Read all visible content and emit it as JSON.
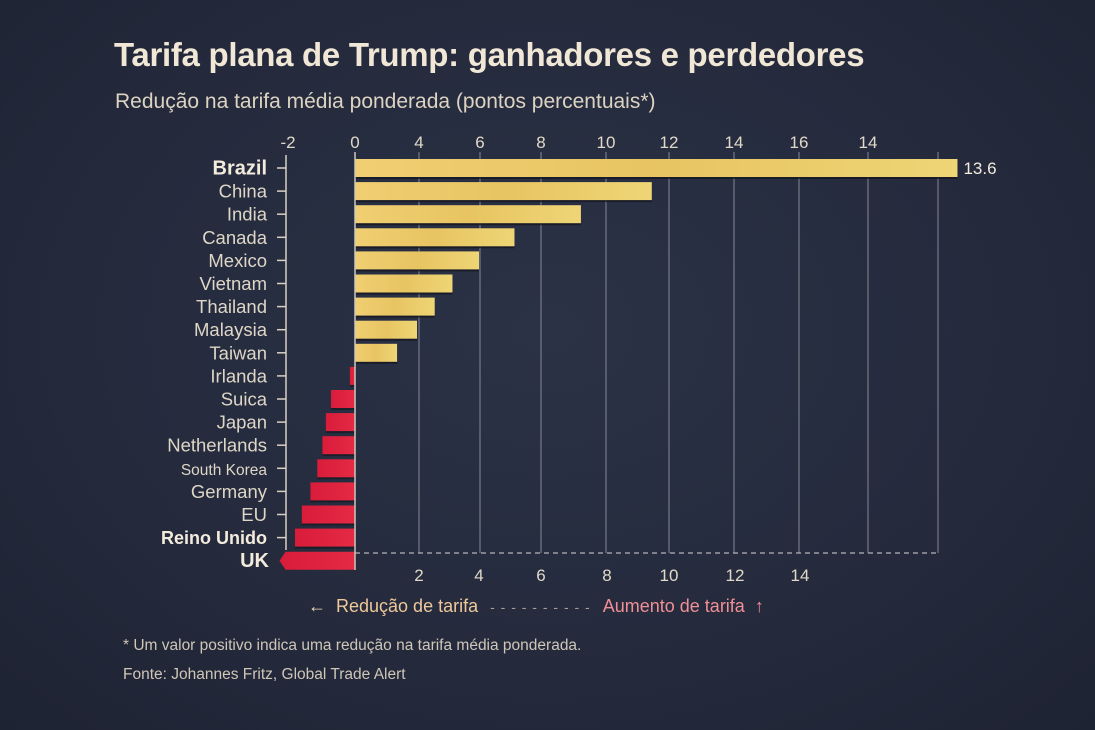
{
  "chart_data": {
    "type": "bar",
    "orientation": "horizontal",
    "title": "Tarifa plana de Trump: ganhadores e perdedores",
    "subtitle": "Redução na tarifa média ponderada (pontos percentuais*)",
    "xlabel": "",
    "ylabel": "",
    "xlim": [
      -2,
      14.5
    ],
    "grid": true,
    "top_tick_labels": [
      "-2",
      "0",
      "4",
      "6",
      "8",
      "10",
      "12",
      "14",
      "16",
      "14"
    ],
    "bottom_tick_labels": [
      "2",
      "4",
      "6",
      "8",
      "10",
      "12",
      "14"
    ],
    "categories": [
      "Brazil",
      "China",
      "India",
      "Canada",
      "Mexico",
      "Vietnam",
      "Thailand",
      "Malaysia",
      "Taiwan",
      "Irlanda",
      "Suica",
      "Japan",
      "Netherlands",
      "South Korea",
      "Germany",
      "EU",
      "Reino Unido",
      "UK"
    ],
    "bold_categories": [
      "Brazil",
      "Reino Unido",
      "UK"
    ],
    "values": [
      13.6,
      6.7,
      5.1,
      3.6,
      2.8,
      2.2,
      1.8,
      1.4,
      0.95,
      -0.15,
      -0.7,
      -0.85,
      -0.95,
      -1.1,
      -1.3,
      -1.55,
      -1.75,
      -2.2
    ],
    "data_labels": [
      {
        "category": "Brazil",
        "text": "13.6"
      }
    ],
    "colors": {
      "positive": "#e9c866",
      "negative": "#e0223e",
      "background": "#252b3d",
      "text": "#ece3d3",
      "grid": "#8a8c99"
    },
    "legend": {
      "placement": "bottom",
      "left_label": "Redução de tarifa",
      "right_label": "Aumento de tarifa",
      "dashes": "- - - - - - - - - -"
    },
    "footnote": "* Um valor positivo indica uma redução na tarifa média ponderada.",
    "source": "Fonte: Johannes Fritz, Global Trade Alert"
  }
}
